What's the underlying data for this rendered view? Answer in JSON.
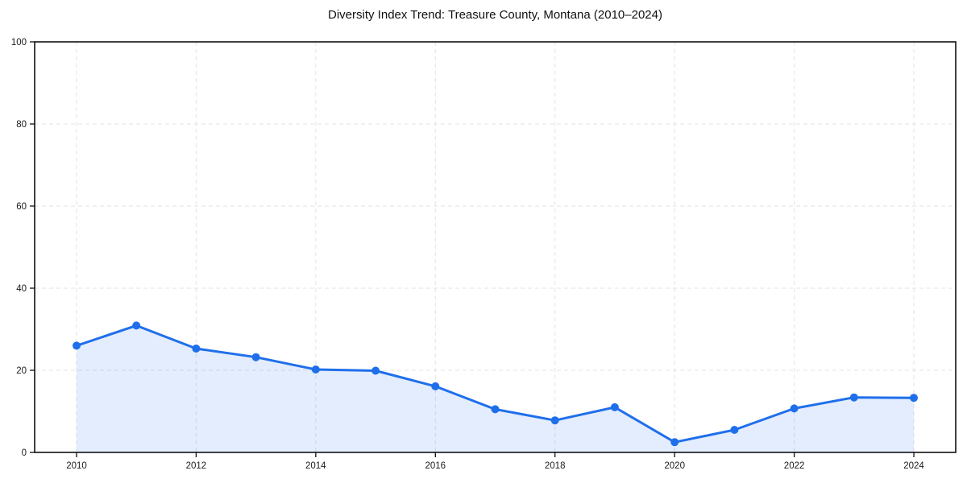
{
  "chart_data": {
    "type": "line",
    "title": "Diversity Index Trend: Treasure County, Montana (2010–2024)",
    "x": [
      2010,
      2011,
      2012,
      2013,
      2014,
      2015,
      2016,
      2017,
      2018,
      2019,
      2020,
      2021,
      2022,
      2023,
      2024
    ],
    "values": [
      26.0,
      30.9,
      25.3,
      23.2,
      20.2,
      19.9,
      16.1,
      10.5,
      7.8,
      11.0,
      2.5,
      5.5,
      10.7,
      13.4,
      13.3
    ],
    "xticks": [
      2010,
      2012,
      2014,
      2016,
      2018,
      2020,
      2022,
      2024
    ],
    "yticks": [
      0,
      20,
      40,
      60,
      80,
      100
    ],
    "xlim": [
      2009.3,
      2024.7
    ],
    "ylim": [
      0,
      100
    ],
    "xlabel": "",
    "ylabel": "",
    "legend": "none",
    "grid": {
      "visible": true,
      "style": "dashed",
      "color": "#e3e3e3"
    },
    "line_color": "#1f6feb",
    "marker": "circle",
    "area_fill": {
      "color": "#1f6feb",
      "opacity": 0.12
    },
    "spine_color": "#111111"
  }
}
